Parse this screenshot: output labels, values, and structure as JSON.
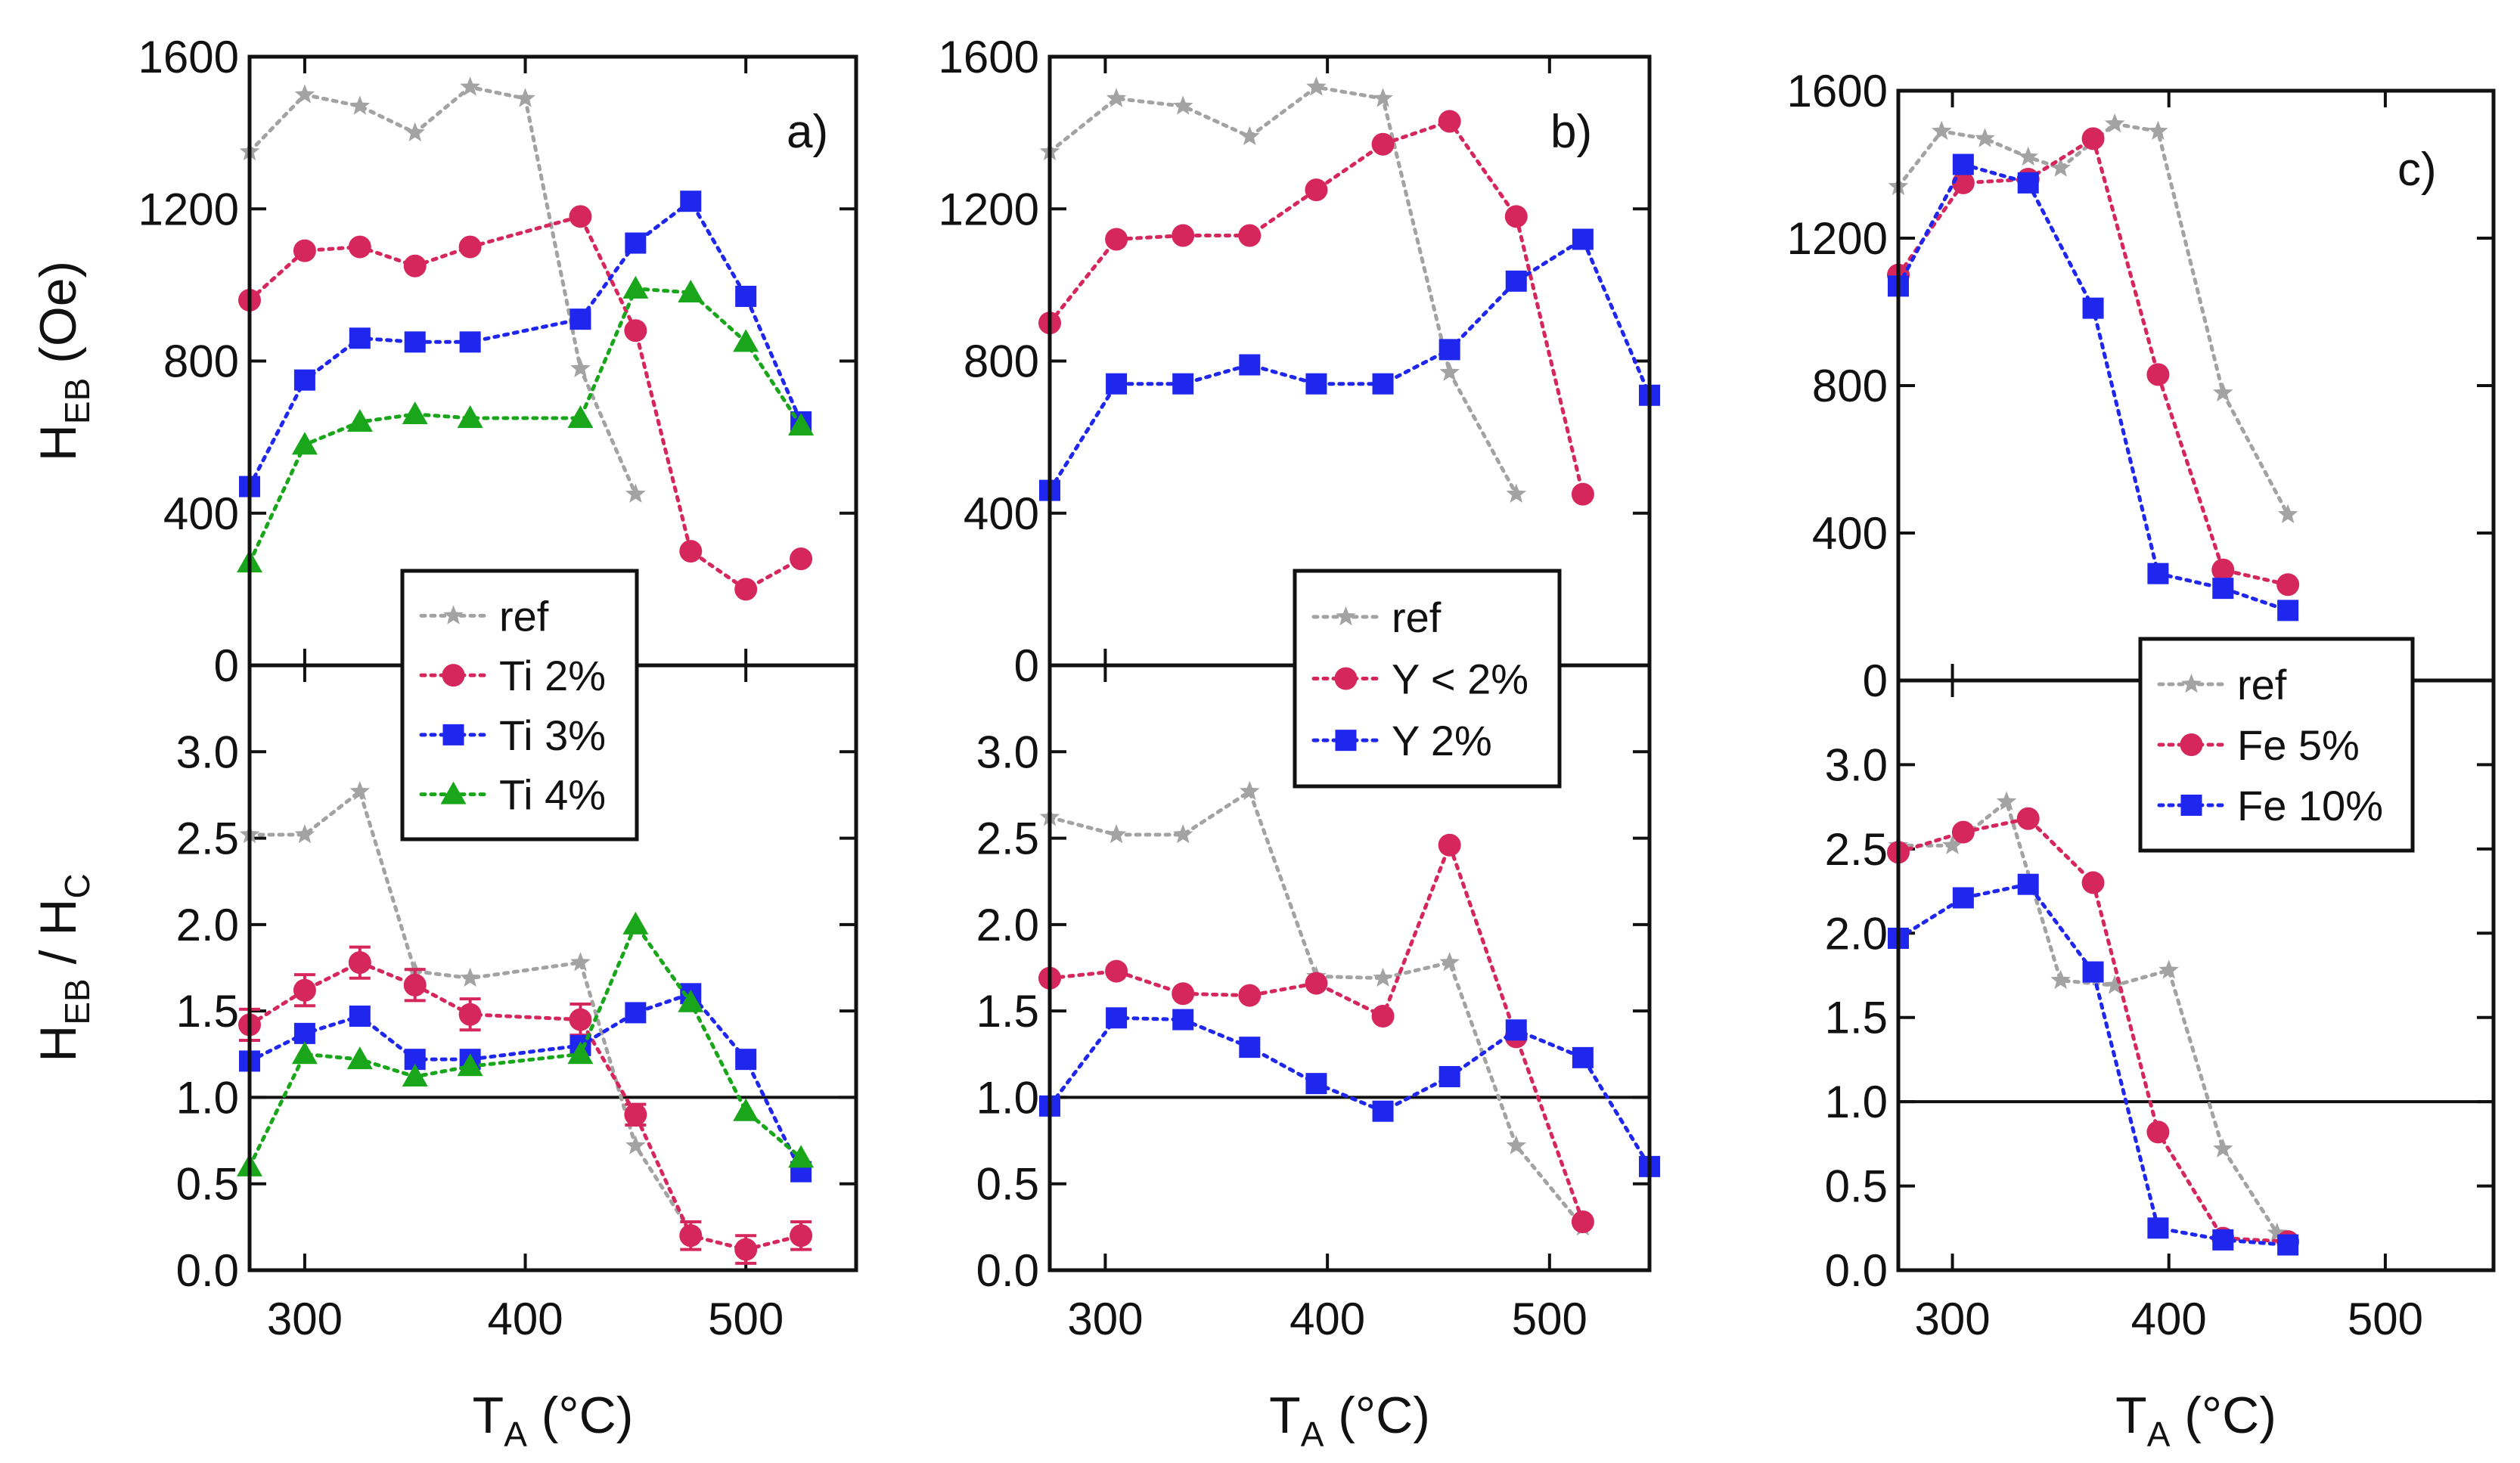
{
  "figure_title": "",
  "colors": {
    "ref": "#a3a3a3",
    "ti2": "#d6275d",
    "ti3": "#1f26ee",
    "ti4": "#19a61b",
    "y_lt2": "#d6275d",
    "y_2": "#1f26ee",
    "fe5": "#d6275d",
    "fe10": "#1f26ee",
    "axis": "#111111"
  },
  "axis_labels": {
    "top_y_main": "H",
    "top_y_sub": "EB",
    "top_y_unit": " (Oe)",
    "bot_y_main1": "H",
    "bot_y_sub1": "EB",
    "bot_y_sep": " / H",
    "bot_y_sub2": "C",
    "x_main": "T",
    "x_sub": "A",
    "x_unit": " (°C)"
  },
  "chart_data": [
    {
      "id": "a",
      "panel_label": "a)",
      "type": "line",
      "xlim": [
        275,
        550
      ],
      "xticks": [
        300,
        400,
        500
      ],
      "top": {
        "ylabel": "HEB (Oe)",
        "ylim": [
          0,
          1600
        ],
        "yticks": [
          0,
          400,
          800,
          1200,
          1600
        ],
        "series": [
          {
            "name": "ref",
            "color": "ref",
            "marker": "star",
            "x": [
              275,
              300,
              325,
              350,
              375,
              400,
              425,
              450
            ],
            "y": [
              1350,
              1500,
              1470,
              1400,
              1520,
              1490,
              780,
              450
            ]
          },
          {
            "name": "Ti 2%",
            "color": "ti2",
            "marker": "circle",
            "x": [
              275,
              300,
              325,
              350,
              375,
              425,
              450,
              475,
              500,
              525
            ],
            "y": [
              960,
              1090,
              1100,
              1050,
              1100,
              1180,
              880,
              300,
              200,
              280
            ]
          },
          {
            "name": "Ti 3%",
            "color": "ti3",
            "marker": "square",
            "x": [
              275,
              300,
              325,
              350,
              375,
              425,
              450,
              475,
              500,
              525
            ],
            "y": [
              470,
              750,
              860,
              850,
              850,
              910,
              1110,
              1220,
              970,
              640
            ]
          },
          {
            "name": "Ti 4%",
            "color": "ti4",
            "marker": "triangle",
            "x": [
              275,
              300,
              325,
              350,
              375,
              425,
              450,
              475,
              500,
              525
            ],
            "y": [
              270,
              580,
              640,
              660,
              650,
              650,
              990,
              980,
              850,
              630
            ]
          }
        ]
      },
      "bottom": {
        "ylabel": "HEB / HC",
        "ylim": [
          0,
          3.5
        ],
        "yticks": [
          0.0,
          0.5,
          1.0,
          1.5,
          2.0,
          2.5,
          3.0
        ],
        "ytick_labels": [
          "0.0",
          "0.5",
          "1.0",
          "1.5",
          "2.0",
          "2.5",
          "3.0"
        ],
        "reference_line": 1.0,
        "series": [
          {
            "name": "ref",
            "color": "ref",
            "marker": "star",
            "x": [
              275,
              300,
              325,
              350,
              375,
              425,
              450,
              475
            ],
            "y": [
              2.52,
              2.52,
              2.77,
              1.73,
              1.69,
              1.78,
              0.72,
              0.22
            ]
          },
          {
            "name": "Ti 2%",
            "color": "ti2",
            "marker": "circle",
            "x": [
              275,
              300,
              325,
              350,
              375,
              425,
              450,
              475,
              500,
              525
            ],
            "y": [
              1.42,
              1.62,
              1.78,
              1.65,
              1.48,
              1.45,
              0.9,
              0.2,
              0.12,
              0.2
            ],
            "err": [
              0.09,
              0.09,
              0.09,
              0.09,
              0.09,
              0.09,
              0.06,
              0.08,
              0.08,
              0.08
            ]
          },
          {
            "name": "Ti 3%",
            "color": "ti3",
            "marker": "square",
            "x": [
              275,
              300,
              325,
              350,
              375,
              425,
              450,
              475,
              500,
              525
            ],
            "y": [
              1.21,
              1.37,
              1.47,
              1.22,
              1.22,
              1.3,
              1.49,
              1.6,
              1.22,
              0.57
            ]
          },
          {
            "name": "Ti 4%",
            "color": "ti4",
            "marker": "triangle",
            "x": [
              275,
              300,
              325,
              350,
              375,
              425,
              450,
              475,
              500,
              525
            ],
            "y": [
              0.6,
              1.25,
              1.22,
              1.12,
              1.18,
              1.25,
              2.0,
              1.55,
              0.92,
              0.65
            ]
          }
        ]
      },
      "legend": {
        "placement": "overlapping top and bottom, center-left",
        "entries": [
          {
            "label": "ref",
            "series": "ref"
          },
          {
            "label": "Ti 2%",
            "series": "Ti 2%"
          },
          {
            "label": "Ti 3%",
            "series": "Ti 3%"
          },
          {
            "label": "Ti 4%",
            "series": "Ti 4%"
          }
        ]
      }
    },
    {
      "id": "b",
      "panel_label": "b)",
      "type": "line",
      "xlim": [
        275,
        545
      ],
      "xticks": [
        300,
        400,
        500
      ],
      "top": {
        "ylabel": "HEB (Oe)",
        "ylim": [
          0,
          1600
        ],
        "yticks": [
          0,
          400,
          800,
          1200,
          1600
        ],
        "series": [
          {
            "name": "ref",
            "color": "ref",
            "marker": "star",
            "x": [
              275,
              305,
              335,
              365,
              395,
              425,
              455,
              485
            ],
            "y": [
              1350,
              1490,
              1470,
              1390,
              1520,
              1490,
              770,
              450
            ]
          },
          {
            "name": "Y < 2%",
            "color": "y_lt2",
            "marker": "circle",
            "x": [
              275,
              305,
              335,
              365,
              395,
              425,
              455,
              485,
              515
            ],
            "y": [
              900,
              1120,
              1130,
              1130,
              1250,
              1370,
              1430,
              1180,
              450
            ]
          },
          {
            "name": "Y    2%",
            "color": "y_2",
            "marker": "square",
            "x": [
              275,
              305,
              335,
              365,
              395,
              425,
              455,
              485,
              515,
              545
            ],
            "y": [
              460,
              740,
              740,
              790,
              740,
              740,
              830,
              1010,
              1120,
              710
            ]
          }
        ]
      },
      "bottom": {
        "ylabel": "HEB / HC",
        "ylim": [
          0,
          3.5
        ],
        "yticks": [
          0.0,
          0.5,
          1.0,
          1.5,
          2.0,
          2.5,
          3.0
        ],
        "ytick_labels": [
          "0.0",
          "0.5",
          "1.0",
          "1.5",
          "2.0",
          "2.5",
          "3.0"
        ],
        "reference_line": 1.0,
        "series": [
          {
            "name": "ref",
            "color": "ref",
            "marker": "star",
            "x": [
              275,
              305,
              335,
              365,
              395,
              425,
              455,
              485,
              515
            ],
            "y": [
              2.62,
              2.52,
              2.52,
              2.77,
              1.7,
              1.69,
              1.78,
              0.72,
              0.25
            ]
          },
          {
            "name": "Y < 2%",
            "color": "y_lt2",
            "marker": "circle",
            "x": [
              275,
              305,
              335,
              365,
              395,
              425,
              455,
              485,
              515
            ],
            "y": [
              1.69,
              1.73,
              1.6,
              1.59,
              1.66,
              1.47,
              2.46,
              1.35,
              0.28
            ]
          },
          {
            "name": "Y    2%",
            "color": "y_2",
            "marker": "square",
            "x": [
              275,
              305,
              335,
              365,
              395,
              425,
              455,
              485,
              515,
              545
            ],
            "y": [
              0.95,
              1.46,
              1.45,
              1.29,
              1.08,
              0.92,
              1.12,
              1.39,
              1.23,
              0.6
            ]
          }
        ]
      },
      "legend": {
        "placement": "overlapping top and bottom, right",
        "entries": [
          {
            "label": "ref",
            "series": "ref"
          },
          {
            "label": "Y < 2%",
            "series": "Y < 2%"
          },
          {
            "label": "Y    2%",
            "series": "Y    2%"
          }
        ]
      }
    },
    {
      "id": "c",
      "panel_label": "c)",
      "type": "line",
      "xlim": [
        275,
        550
      ],
      "xticks": [
        300,
        400,
        500
      ],
      "top": {
        "ylabel": "HEB (Oe)",
        "ylim": [
          0,
          1600
        ],
        "yticks": [
          0,
          400,
          800,
          1200,
          1600
        ],
        "series": [
          {
            "name": "ref",
            "color": "ref",
            "marker": "star",
            "x": [
              275,
              295,
              315,
              335,
              350,
              375,
              395,
              425,
              455
            ],
            "y": [
              1340,
              1490,
              1470,
              1420,
              1390,
              1510,
              1490,
              780,
              450
            ]
          },
          {
            "name": "Fe 5%",
            "color": "fe5",
            "marker": "circle",
            "x": [
              275,
              305,
              335,
              365,
              395,
              425,
              455
            ],
            "y": [
              1100,
              1350,
              1360,
              1470,
              830,
              300,
              260
            ]
          },
          {
            "name": "Fe 10%",
            "color": "fe10",
            "marker": "square",
            "x": [
              275,
              305,
              335,
              365,
              395,
              425,
              455
            ],
            "y": [
              1070,
              1400,
              1350,
              1010,
              290,
              250,
              190
            ]
          }
        ]
      },
      "bottom": {
        "ylabel": "HEB / HC",
        "ylim": [
          0,
          3.5
        ],
        "yticks": [
          0.0,
          0.5,
          1.0,
          1.5,
          2.0,
          2.5,
          3.0
        ],
        "ytick_labels": [
          "0.0",
          "0.5",
          "1.0",
          "1.5",
          "2.0",
          "2.5",
          "3.0"
        ],
        "reference_line": 1.0,
        "series": [
          {
            "name": "ref",
            "color": "ref",
            "marker": "star",
            "x": [
              275,
              300,
              325,
              350,
              375,
              400,
              425,
              450
            ],
            "y": [
              2.52,
              2.52,
              2.78,
              1.72,
              1.69,
              1.78,
              0.72,
              0.22
            ]
          },
          {
            "name": "Fe 5%",
            "color": "fe5",
            "marker": "circle",
            "x": [
              275,
              305,
              335,
              365,
              395,
              425,
              455
            ],
            "y": [
              2.48,
              2.6,
              2.68,
              2.3,
              0.82,
              0.19,
              0.17
            ]
          },
          {
            "name": "Fe 10%",
            "color": "fe10",
            "marker": "square",
            "x": [
              275,
              305,
              335,
              365,
              395,
              425,
              455
            ],
            "y": [
              1.97,
              2.21,
              2.29,
              1.77,
              0.25,
              0.18,
              0.15
            ]
          }
        ]
      },
      "legend": {
        "placement": "overlapping top and bottom, center-left",
        "entries": [
          {
            "label": "ref",
            "series": "ref"
          },
          {
            "label": "Fe 5%",
            "series": "Fe 5%"
          },
          {
            "label": "Fe 10%",
            "series": "Fe 10%"
          }
        ]
      }
    }
  ]
}
